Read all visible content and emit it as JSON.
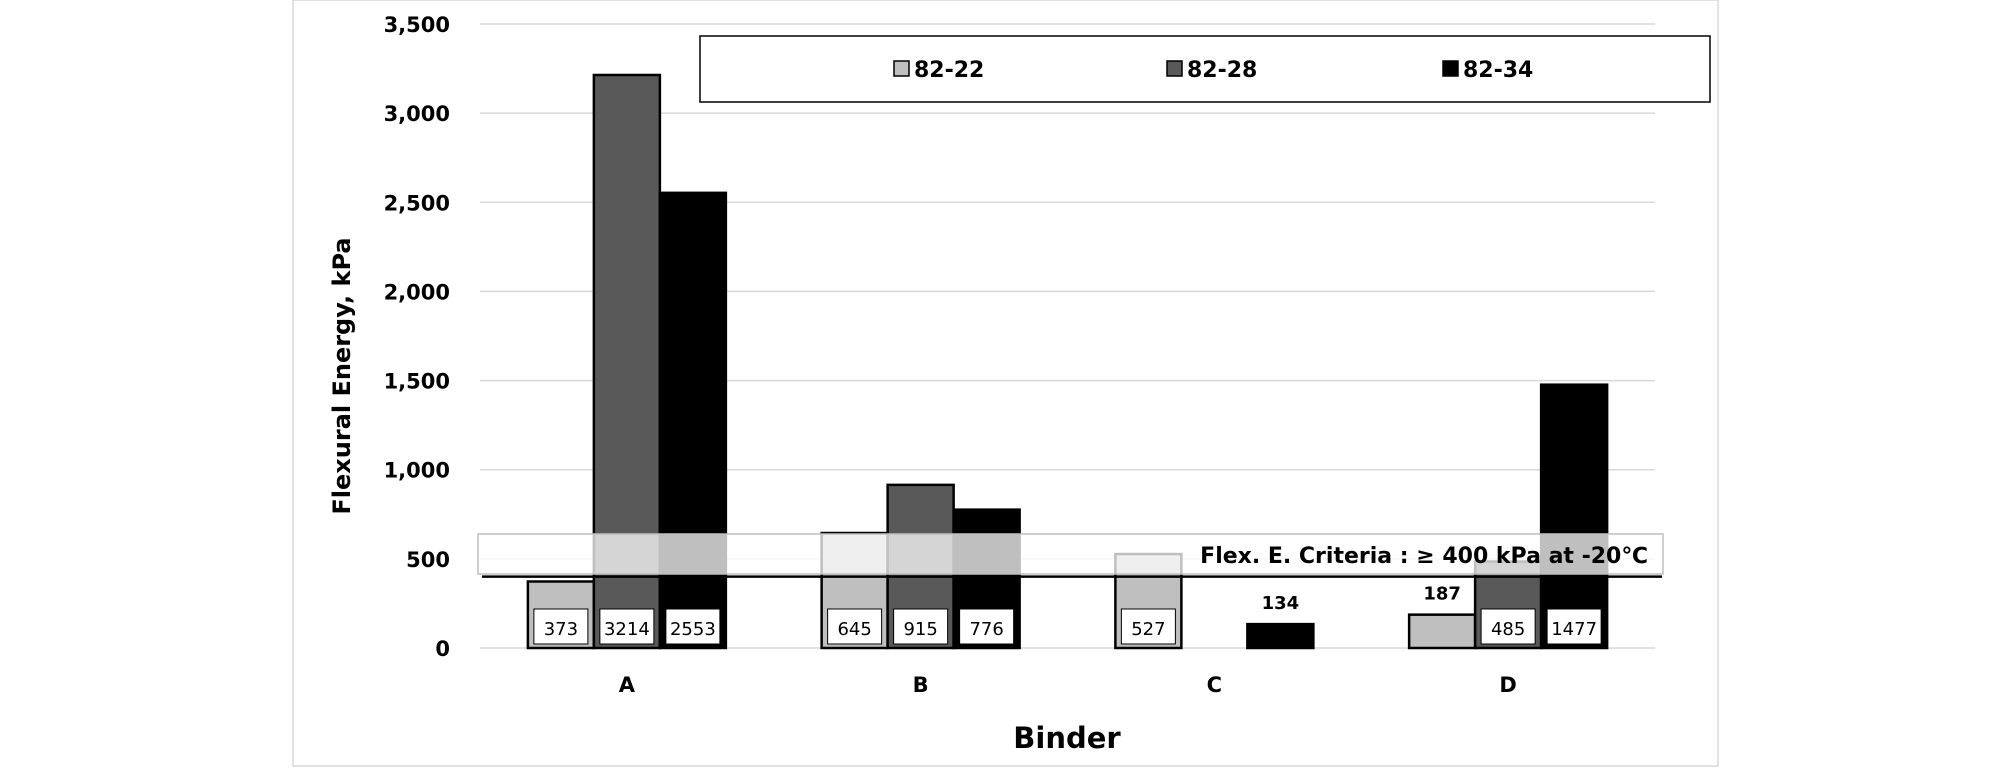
{
  "chart_data": {
    "type": "bar",
    "xlabel": "Binder",
    "ylabel": "Flexural Energy, kPa",
    "ylim": [
      0,
      3500
    ],
    "yticks": [
      0,
      500,
      1000,
      1500,
      2000,
      2500,
      3000,
      3500
    ],
    "ytick_labels": [
      "0",
      "500",
      "1,000",
      "1,500",
      "2,000",
      "2,500",
      "3,000",
      "3,500"
    ],
    "grid": true,
    "legend_position": "top",
    "categories": [
      "A",
      "B",
      "C",
      "D"
    ],
    "series": [
      {
        "name": "82-22",
        "color": "#bfbfbf",
        "values": [
          373,
          645,
          527,
          187
        ],
        "labels": [
          "373",
          "645",
          "527",
          "187"
        ]
      },
      {
        "name": "82-28",
        "color": "#595959",
        "values": [
          3214,
          915,
          null,
          485
        ],
        "labels": [
          "3214",
          "915",
          "",
          "485"
        ]
      },
      {
        "name": "82-34",
        "color": "#000000",
        "values": [
          2553,
          776,
          134,
          1477
        ],
        "labels": [
          "2553",
          "776",
          "134",
          "1477"
        ]
      }
    ],
    "criteria": {
      "value": 400,
      "label": "Flex. E. Criteria : ≥ 400 kPa at -20℃"
    }
  }
}
